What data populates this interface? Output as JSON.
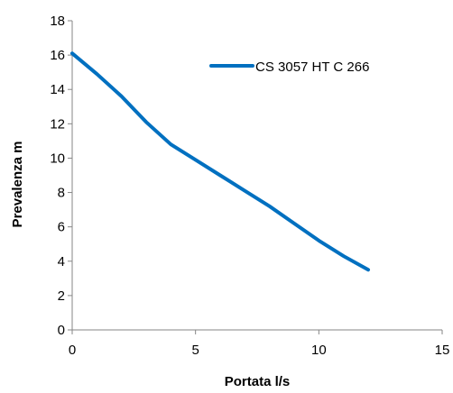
{
  "chart_data": {
    "type": "line",
    "title": "",
    "xlabel": "Portata l/s",
    "ylabel": "Prevalenza  m",
    "xlim": [
      0,
      15
    ],
    "ylim": [
      0,
      18
    ],
    "xticks": [
      0,
      5,
      10,
      15
    ],
    "yticks": [
      0,
      2,
      4,
      6,
      8,
      10,
      12,
      14,
      16,
      18
    ],
    "grid": false,
    "legend_position": "top-right",
    "series": [
      {
        "name": "CS 3057 HT C 266",
        "color": "#0070C0",
        "x": [
          0,
          1,
          2,
          3,
          4,
          5,
          6,
          7,
          8,
          9,
          10,
          11,
          12
        ],
        "y": [
          16.1,
          14.9,
          13.6,
          12.1,
          10.8,
          9.9,
          9.0,
          8.1,
          7.2,
          6.2,
          5.2,
          4.3,
          3.5
        ]
      }
    ]
  }
}
